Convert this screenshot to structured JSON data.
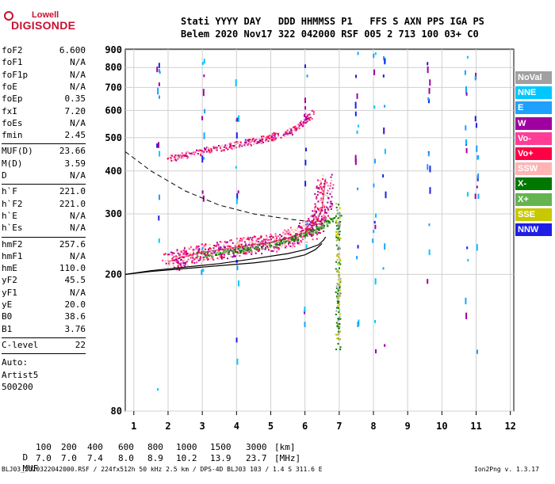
{
  "logo": {
    "top": "Lowell",
    "main": "DIGISONDE"
  },
  "header": {
    "line1": "Stati YYYY DAY   DDD HHMMSS P1   FFS S AXN PPS IGA PS",
    "line2": "Belem 2020 Nov17 322 042000 RSF 005 2 713 100 03+ C0"
  },
  "params_group1": [
    {
      "name": "foF2",
      "value": "6.600"
    },
    {
      "name": "foF1",
      "value": "N/A"
    },
    {
      "name": "foF1p",
      "value": "N/A"
    },
    {
      "name": "foE",
      "value": "N/A"
    },
    {
      "name": "foEp",
      "value": "0.35"
    },
    {
      "name": "fxI",
      "value": "7.20"
    },
    {
      "name": "foEs",
      "value": "N/A"
    },
    {
      "name": "fmin",
      "value": "2.45"
    }
  ],
  "params_group2": [
    {
      "name": "MUF(D)",
      "value": "23.66"
    },
    {
      "name": "M(D)",
      "value": "3.59"
    },
    {
      "name": "D",
      "value": "N/A"
    }
  ],
  "params_group3": [
    {
      "name": "h`F",
      "value": "221.0"
    },
    {
      "name": "h`F2",
      "value": "221.0"
    },
    {
      "name": "h`E",
      "value": "N/A"
    },
    {
      "name": "h`Es",
      "value": "N/A"
    }
  ],
  "params_group4": [
    {
      "name": "hmF2",
      "value": "257.6"
    },
    {
      "name": "hmF1",
      "value": "N/A"
    },
    {
      "name": "hmE",
      "value": "110.0"
    },
    {
      "name": "yF2",
      "value": "45.5"
    },
    {
      "name": "yF1",
      "value": "N/A"
    },
    {
      "name": "yE",
      "value": "20.0"
    },
    {
      "name": "B0",
      "value": "38.6"
    },
    {
      "name": "B1",
      "value": "3.76"
    }
  ],
  "clevel": {
    "name": "C-level",
    "value": "22"
  },
  "autoscaling": {
    "line1": "Auto:",
    "line2": "Artist5",
    "line3": "500200"
  },
  "legend": [
    {
      "label": "NoVal",
      "color": "#a0a0a0"
    },
    {
      "label": "NNE",
      "color": "#00c8ff"
    },
    {
      "label": "E",
      "color": "#1ea0ff"
    },
    {
      "label": "W",
      "color": "#a000a0"
    },
    {
      "label": "Vo-",
      "color": "#ff3c96"
    },
    {
      "label": "Vo+",
      "color": "#ff0046"
    },
    {
      "label": "SSW",
      "color": "#ffb4b4"
    },
    {
      "label": "X-",
      "color": "#007800"
    },
    {
      "label": "X+",
      "color": "#64b450"
    },
    {
      "label": "SSE",
      "color": "#c8c800"
    },
    {
      "label": "NNW",
      "color": "#1e1ee6"
    }
  ],
  "dmuf": {
    "d_label": "D",
    "d_values": [
      "100",
      "200",
      "400",
      "600",
      "800",
      "1000",
      "1500",
      "3000"
    ],
    "d_unit": "[km]",
    "muf_label": "MUF",
    "muf_values": [
      "7.0",
      "7.0",
      "7.4",
      "8.0",
      "8.9",
      "10.2",
      "13.9",
      "23.7"
    ],
    "muf_unit": "[MHz]"
  },
  "footer": {
    "left": "BLJ03_2020322042000.RSF / 224fx512h 50 kHz 2.5 km / DPS-4D BLJ03 103 / 1.4 S 311.6 E",
    "right": "Ion2Png v. 1.3.17"
  },
  "chart_data": {
    "type": "scatter",
    "title": "",
    "xlabel": "",
    "ylabel": "",
    "xlim": [
      0.75,
      12.1
    ],
    "ylim": [
      80,
      905
    ],
    "x_ticks": [
      1,
      2,
      3,
      4,
      5,
      6,
      7,
      8,
      9,
      10,
      11,
      12
    ],
    "y_ticks": [
      80,
      200,
      300,
      400,
      500,
      600,
      700,
      800,
      900
    ],
    "y_scale": "log",
    "grid": true,
    "series": [
      {
        "name": "O-trace F2",
        "x": [
          2.0,
          2.5,
          3.0,
          3.5,
          4.0,
          4.5,
          5.0,
          5.5,
          6.0,
          6.3,
          6.5,
          6.6
        ],
        "y": [
          218,
          225,
          232,
          236,
          240,
          244,
          248,
          255,
          265,
          280,
          310,
          380
        ]
      },
      {
        "name": "Multi-hop F2",
        "x": [
          2.0,
          2.5,
          3.0,
          3.5,
          4.0,
          4.5,
          5.0,
          5.5,
          5.8,
          6.0,
          6.2
        ],
        "y": [
          438,
          447,
          458,
          468,
          480,
          490,
          503,
          520,
          540,
          560,
          600
        ]
      },
      {
        "name": "X-trace F2",
        "x": [
          2.8,
          3.5,
          4.0,
          4.5,
          5.0,
          5.5,
          6.0,
          6.5,
          7.0
        ],
        "y": [
          228,
          232,
          236,
          240,
          245,
          252,
          262,
          278,
          300
        ]
      },
      {
        "name": "Model profile",
        "x": [
          0.75,
          1.5,
          2.5,
          3.5,
          4.5,
          5.5,
          6.0,
          6.4,
          6.55,
          6.6
        ],
        "y": [
          200,
          205,
          210,
          215,
          222,
          230,
          236,
          244,
          252,
          257
        ]
      },
      {
        "name": "Model profile lower",
        "x": [
          0.75,
          1.5,
          2.5,
          3.5,
          4.5,
          5.5,
          6.0,
          6.3,
          6.5
        ],
        "y": [
          200,
          204,
          208,
          212,
          216,
          222,
          228,
          236,
          246
        ]
      },
      {
        "name": "Dashed profile",
        "x": [
          0.75,
          1.5,
          2.5,
          3.5,
          4.5,
          5.5,
          6.0
        ],
        "y": [
          455,
          400,
          350,
          318,
          300,
          290,
          286
        ]
      },
      {
        "name": "Vertical band",
        "x": [
          6.95,
          6.95,
          6.95,
          6.95,
          6.95
        ],
        "y": [
          120,
          160,
          200,
          260,
          320
        ]
      }
    ]
  }
}
